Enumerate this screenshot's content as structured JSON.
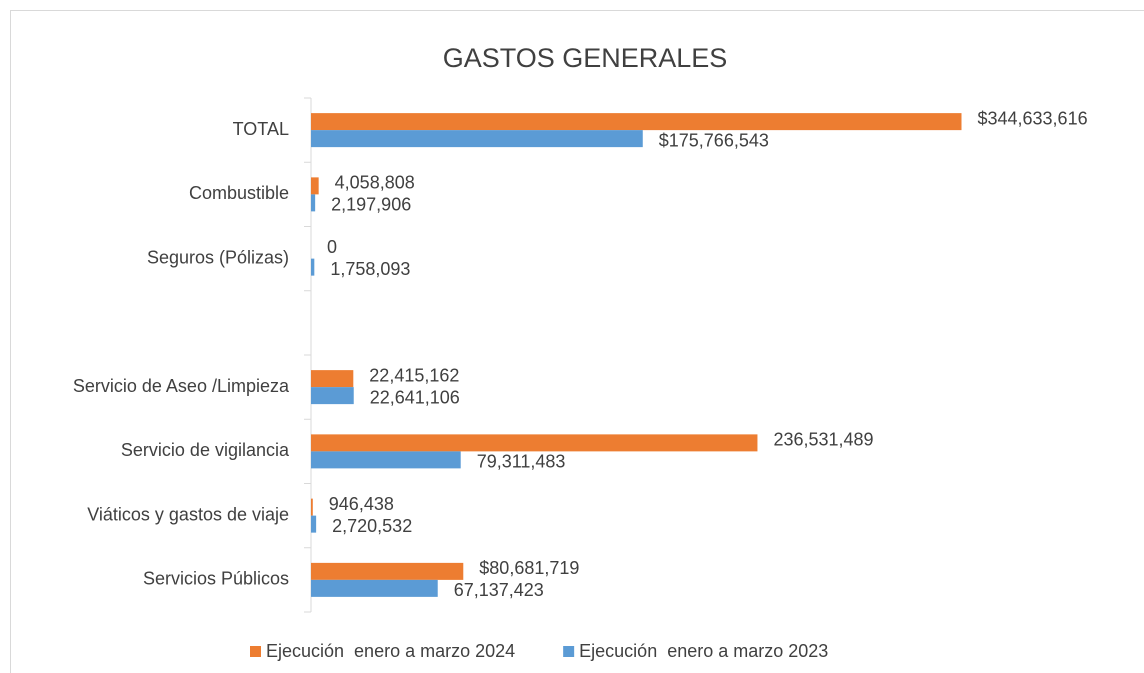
{
  "chart_data": {
    "type": "hbar",
    "title": "GASTOS GENERALES",
    "categories": [
      "TOTAL",
      "Combustible",
      "Seguros (Pólizas)",
      null,
      "Servicio de Aseo /Limpieza",
      "Servicio de vigilancia",
      "Viáticos y gastos de viaje",
      "Servicios Públicos"
    ],
    "series": [
      {
        "name": "Ejecución  enero a marzo 2024",
        "color": "#ed7d31",
        "values": [
          344633616,
          4058808,
          0,
          null,
          22415162,
          236531489,
          946438,
          80681719
        ],
        "value_labels": [
          "$344,633,616",
          "4,058,808",
          "0",
          null,
          "22,415,162",
          "236,531,489",
          "946,438",
          "$80,681,719"
        ]
      },
      {
        "name": "Ejecución  enero a marzo 2023",
        "color": "#5b9bd5",
        "values": [
          175766543,
          2197906,
          1758093,
          null,
          22641106,
          79311483,
          2720532,
          67137423
        ],
        "value_labels": [
          "$175,766,543",
          "2,197,906",
          "1,758,093",
          null,
          "22,641,106",
          "79,311,483",
          "2,720,532",
          "67,137,423"
        ]
      }
    ],
    "xlim": [
      0,
      400000000
    ],
    "legend": "bottom"
  }
}
